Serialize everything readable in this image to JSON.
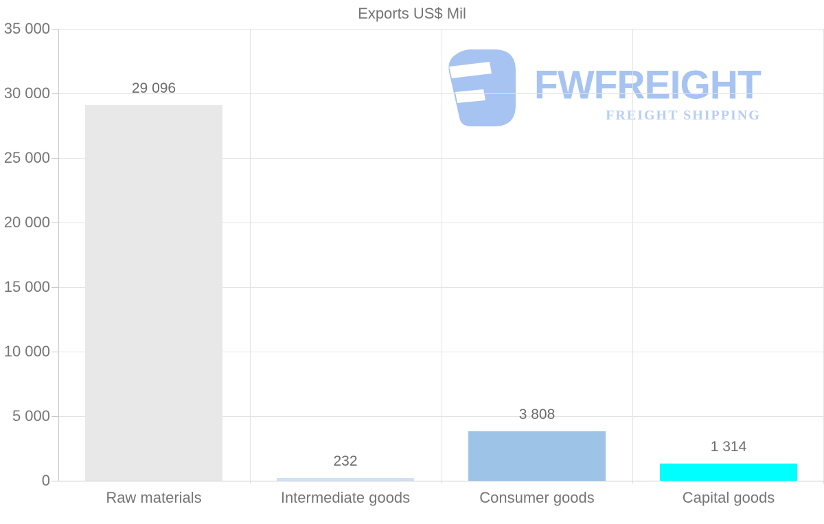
{
  "chart_data": {
    "type": "bar",
    "title": "Exports US$ Mil",
    "xlabel": "",
    "ylabel": "",
    "categories": [
      "Raw materials",
      "Intermediate goods",
      "Consumer goods",
      "Capital goods"
    ],
    "values": [
      29096,
      232,
      3808,
      1314
    ],
    "value_labels": [
      "29 096",
      "232",
      "3 808",
      "1 314"
    ],
    "bar_colors": [
      "#e8e8e8",
      "#cfe2f3",
      "#9dc3e6",
      "#00ffff"
    ],
    "ylim": [
      0,
      35000
    ],
    "ytick_step": 5000,
    "yticks": [
      0,
      5000,
      10000,
      15000,
      20000,
      25000,
      30000,
      35000
    ],
    "ytick_labels": [
      "0",
      "5 000",
      "10 000",
      "15 000",
      "20 000",
      "25 000",
      "30 000",
      "35 000"
    ],
    "grid": "on",
    "legend": "none"
  },
  "watermark": {
    "brand": "FWFREIGHT",
    "tagline": "FREIGHT SHIPPING",
    "color": "#a6c3f1",
    "tagline_color": "#b7cef5"
  },
  "colors": {
    "text": "#757575",
    "value_text": "#6b6b6b",
    "grid": "#e3e3e3",
    "axis": "#c8c8c8",
    "background": "#ffffff"
  }
}
